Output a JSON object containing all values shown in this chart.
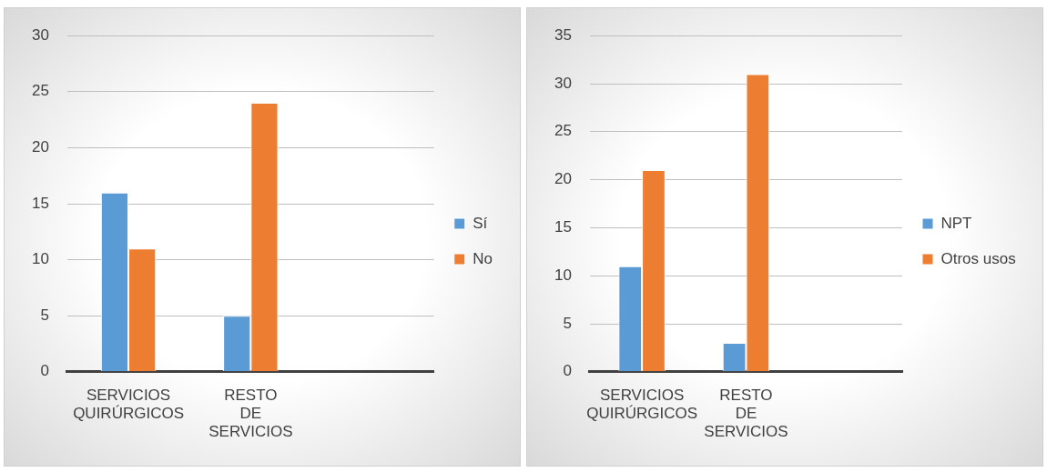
{
  "chart_data": [
    {
      "type": "bar",
      "categories": [
        "SERVICIOS QUIRÚRGICOS",
        "RESTO DE SERVICIOS",
        null
      ],
      "ylim": [
        0,
        30
      ],
      "yticks": [
        0,
        5,
        10,
        15,
        20,
        25,
        30
      ],
      "grid": "y",
      "legend": "right",
      "series": [
        {
          "name": "Sí",
          "color": "#5b9bd5",
          "values": [
            16,
            5,
            null
          ]
        },
        {
          "name": "No",
          "color": "#ed7d31",
          "values": [
            11,
            24,
            null
          ]
        }
      ]
    },
    {
      "type": "bar",
      "categories": [
        "SERVICIOS QUIRÚRGICOS",
        "RESTO DE SERVICIOS",
        null
      ],
      "ylim": [
        0,
        35
      ],
      "yticks": [
        0,
        5,
        10,
        15,
        20,
        25,
        30,
        35
      ],
      "grid": "y",
      "legend": "right",
      "series": [
        {
          "name": "NPT",
          "color": "#5b9bd5",
          "values": [
            11,
            3,
            null
          ]
        },
        {
          "name": "Otros usos",
          "color": "#ed7d31",
          "values": [
            21,
            31,
            null
          ]
        }
      ]
    }
  ]
}
